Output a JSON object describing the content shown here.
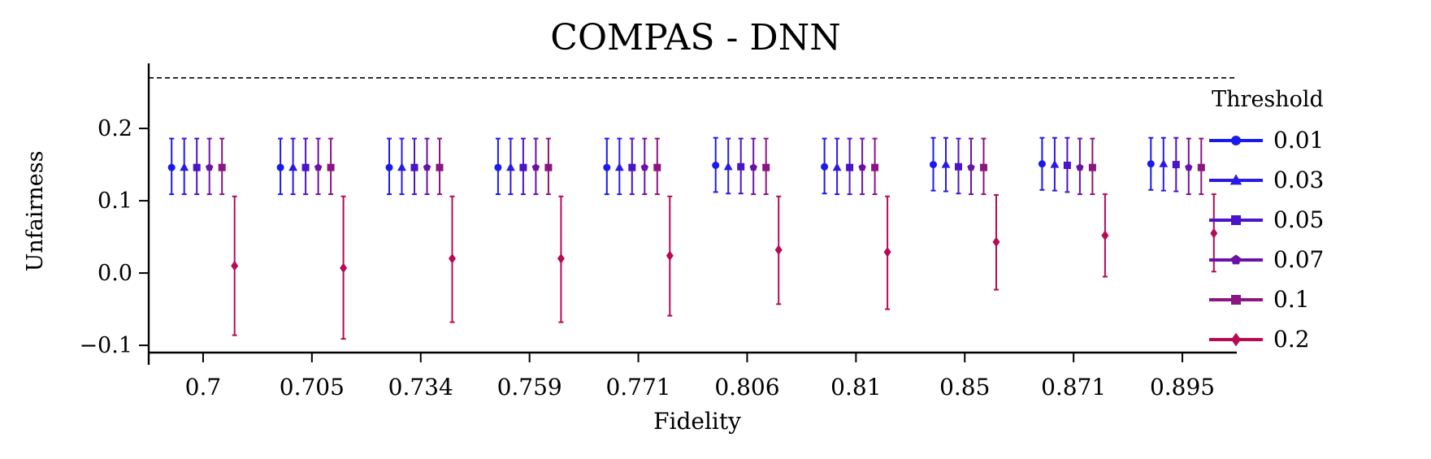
{
  "chart_data": {
    "type": "errorbar",
    "title": "COMPAS - DNN",
    "xlabel": "Fidelity",
    "ylabel": "Unfairness",
    "categories": [
      "0.7",
      "0.705",
      "0.734",
      "0.759",
      "0.771",
      "0.806",
      "0.81",
      "0.85",
      "0.871",
      "0.895"
    ],
    "ylim": [
      -0.11,
      0.29
    ],
    "yticks": [
      -0.1,
      0.0,
      0.1,
      0.2
    ],
    "ytick_labels": [
      "−0.1",
      "0.0",
      "0.1",
      "0.2"
    ],
    "reference_line": 0.27,
    "grid": false,
    "legend": {
      "title": "Threshold",
      "position": "outside-right"
    },
    "series": [
      {
        "name": "0.01",
        "color": "#1a1af0",
        "marker": "circle",
        "values": [
          0.146,
          0.146,
          0.146,
          0.146,
          0.146,
          0.149,
          0.147,
          0.15,
          0.151,
          0.151
        ],
        "lower": [
          0.109,
          0.109,
          0.109,
          0.109,
          0.109,
          0.112,
          0.11,
          0.114,
          0.115,
          0.115
        ],
        "upper": [
          0.186,
          0.186,
          0.186,
          0.186,
          0.186,
          0.187,
          0.186,
          0.187,
          0.187,
          0.187
        ]
      },
      {
        "name": "0.03",
        "color": "#2b19e6",
        "marker": "triangle",
        "values": [
          0.146,
          0.146,
          0.146,
          0.146,
          0.146,
          0.147,
          0.146,
          0.15,
          0.15,
          0.151
        ],
        "lower": [
          0.109,
          0.109,
          0.109,
          0.109,
          0.109,
          0.11,
          0.109,
          0.113,
          0.114,
          0.114
        ],
        "upper": [
          0.186,
          0.186,
          0.186,
          0.186,
          0.186,
          0.186,
          0.186,
          0.187,
          0.187,
          0.187
        ]
      },
      {
        "name": "0.05",
        "color": "#4a14c9",
        "marker": "square",
        "values": [
          0.146,
          0.146,
          0.146,
          0.146,
          0.146,
          0.147,
          0.146,
          0.147,
          0.149,
          0.15
        ],
        "lower": [
          0.109,
          0.109,
          0.109,
          0.109,
          0.109,
          0.11,
          0.109,
          0.11,
          0.112,
          0.113
        ],
        "upper": [
          0.186,
          0.186,
          0.186,
          0.186,
          0.186,
          0.186,
          0.186,
          0.186,
          0.187,
          0.187
        ]
      },
      {
        "name": "0.07",
        "color": "#6a12a8",
        "marker": "pentagon",
        "values": [
          0.146,
          0.146,
          0.146,
          0.146,
          0.146,
          0.146,
          0.146,
          0.146,
          0.146,
          0.146
        ],
        "lower": [
          0.109,
          0.109,
          0.109,
          0.109,
          0.109,
          0.109,
          0.109,
          0.109,
          0.109,
          0.109
        ],
        "upper": [
          0.186,
          0.186,
          0.186,
          0.186,
          0.186,
          0.186,
          0.186,
          0.186,
          0.186,
          0.186
        ]
      },
      {
        "name": "0.1",
        "color": "#8b1582",
        "marker": "square",
        "values": [
          0.146,
          0.146,
          0.146,
          0.146,
          0.146,
          0.146,
          0.146,
          0.146,
          0.146,
          0.146
        ],
        "lower": [
          0.109,
          0.109,
          0.109,
          0.109,
          0.109,
          0.109,
          0.109,
          0.109,
          0.109,
          0.109
        ],
        "upper": [
          0.186,
          0.186,
          0.186,
          0.186,
          0.186,
          0.186,
          0.186,
          0.186,
          0.186,
          0.186
        ]
      },
      {
        "name": "0.2",
        "color": "#b80a55",
        "marker": "diamond",
        "values": [
          0.01,
          0.007,
          0.02,
          0.02,
          0.024,
          0.032,
          0.029,
          0.043,
          0.052,
          0.055
        ],
        "lower": [
          -0.086,
          -0.091,
          -0.068,
          -0.068,
          -0.059,
          -0.043,
          -0.05,
          -0.023,
          -0.005,
          0.002
        ],
        "upper": [
          0.106,
          0.106,
          0.106,
          0.106,
          0.106,
          0.106,
          0.106,
          0.108,
          0.109,
          0.109
        ]
      }
    ]
  }
}
